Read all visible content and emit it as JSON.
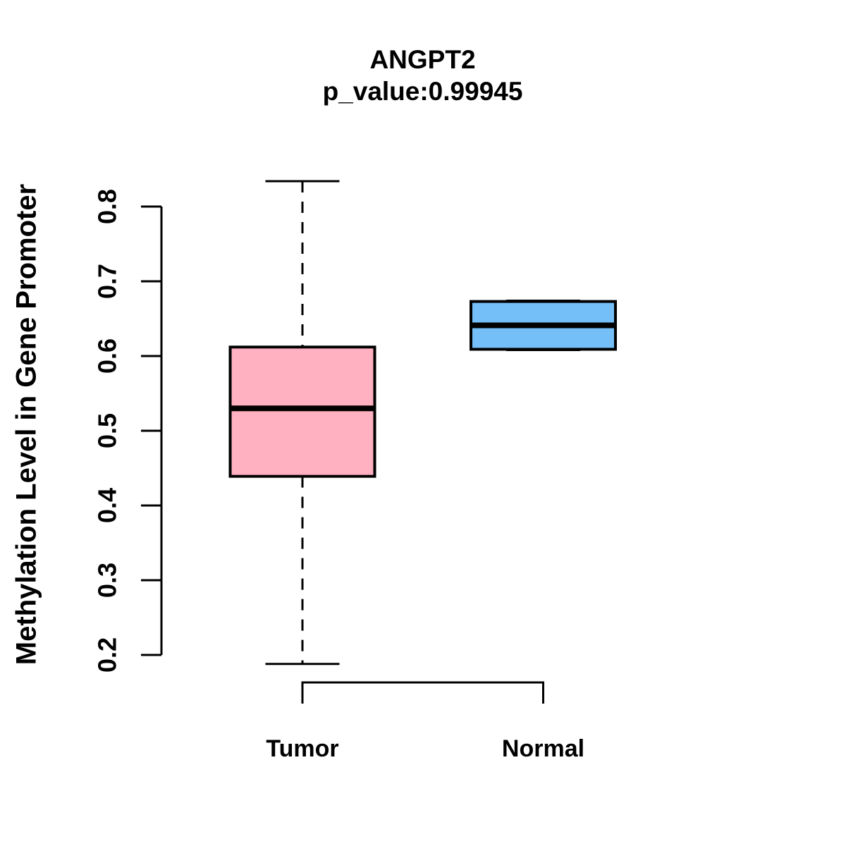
{
  "chart_data": {
    "type": "boxplot",
    "title": "ANGPT2",
    "subtitle": "p_value:0.99945",
    "gene": "ANGPT2",
    "p_value": "0.99945",
    "ylabel": "Methylation Level in Gene Promoter",
    "categories": [
      "Tumor",
      "Normal"
    ],
    "ylim": [
      0.2,
      0.8
    ],
    "yticks": [
      0.2,
      0.3,
      0.4,
      0.5,
      0.6,
      0.7,
      0.8
    ],
    "ytick_labels": [
      "0.2",
      "0.3",
      "0.4",
      "0.5",
      "0.6",
      "0.7",
      "0.8"
    ],
    "grid": false,
    "legend": false,
    "background": "#FFFFFF",
    "line_color": "#000000",
    "series": [
      {
        "name": "Tumor",
        "fill": "#FFB0C1",
        "stats": {
          "whisker_low": 0.188,
          "q1": 0.439,
          "median": 0.53,
          "q3": 0.612,
          "whisker_high": 0.834
        }
      },
      {
        "name": "Normal",
        "fill": "#74BFF7",
        "stats": {
          "whisker_low": 0.608,
          "q1": 0.609,
          "median": 0.641,
          "q3": 0.673,
          "whisker_high": 0.674
        }
      }
    ]
  }
}
